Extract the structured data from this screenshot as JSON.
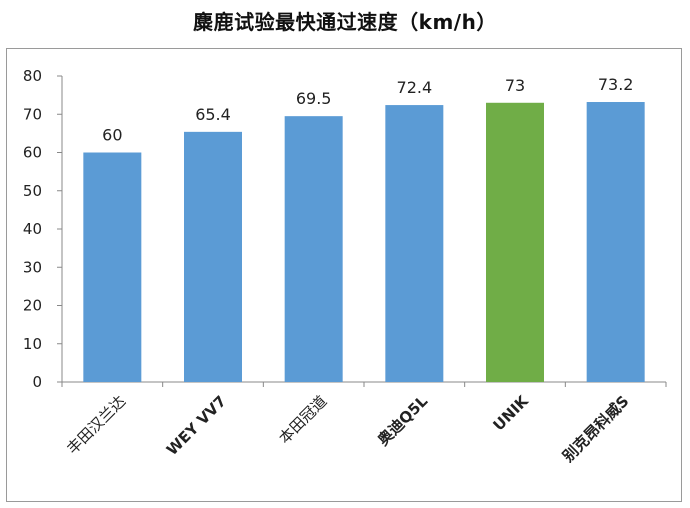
{
  "chart_data": {
    "type": "bar",
    "title": "麋鹿试验最快通过速度（km/h）",
    "categories": [
      "丰田汉兰达",
      "WEY VV7",
      "本田冠道",
      "奥迪Q5L",
      "UNIK",
      "别克昂科威S"
    ],
    "bold_categories": [
      false,
      true,
      false,
      true,
      true,
      true
    ],
    "values": [
      60,
      65.4,
      69.5,
      72.4,
      73,
      73.2
    ],
    "value_labels": [
      "60",
      "65.4",
      "69.5",
      "72.4",
      "73",
      "73.2"
    ],
    "bar_colors": [
      "#5b9bd5",
      "#5b9bd5",
      "#5b9bd5",
      "#5b9bd5",
      "#70ad47",
      "#5b9bd5"
    ],
    "ylim": [
      0,
      80
    ],
    "yticks": [
      0,
      10,
      20,
      30,
      40,
      50,
      60,
      70,
      80
    ],
    "grid": false,
    "legend": "none"
  }
}
